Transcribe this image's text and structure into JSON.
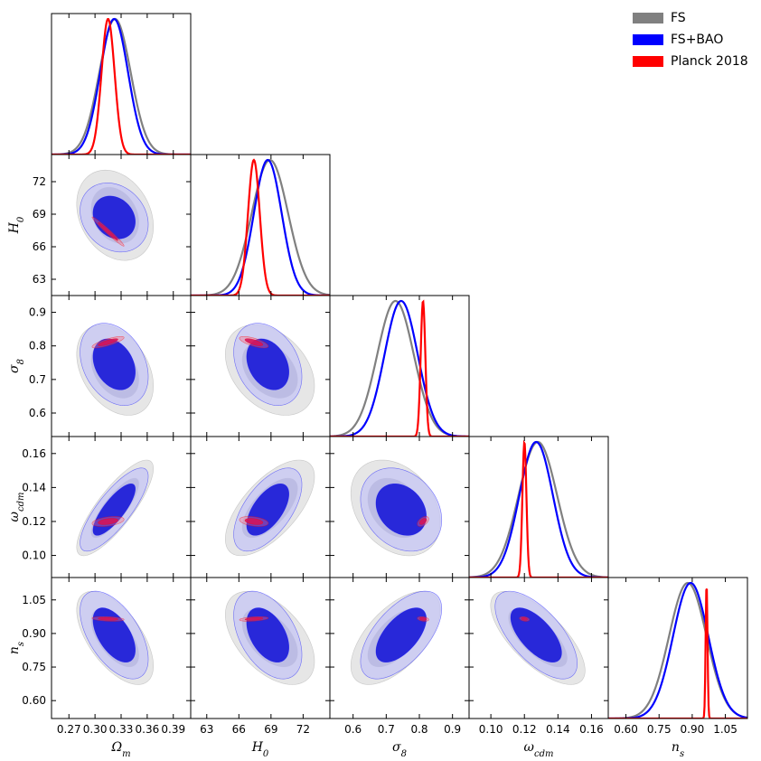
{
  "chart_data": {
    "type": "corner",
    "parameters": [
      {
        "label": "Ω_m",
        "sub": "m",
        "base": "Ω",
        "range": [
          0.25,
          0.41
        ],
        "ticks": [
          "0.27",
          "0.30",
          "0.33",
          "0.36",
          "0.39"
        ],
        "tickValues": [
          0.27,
          0.3,
          0.33,
          0.36,
          0.39
        ]
      },
      {
        "label": "H_0",
        "sub": "0",
        "base": "H",
        "range": [
          61.5,
          74.5
        ],
        "ticks": [
          "63",
          "66",
          "69",
          "72"
        ],
        "tickValues": [
          63,
          66,
          69,
          72
        ]
      },
      {
        "label": "σ_8",
        "sub": "8",
        "base": "σ",
        "range": [
          0.53,
          0.95
        ],
        "ticks": [
          "0.6",
          "0.7",
          "0.8",
          "0.9"
        ],
        "tickValues": [
          0.6,
          0.7,
          0.8,
          0.9
        ]
      },
      {
        "label": "ω_cdm",
        "sub": "cdm",
        "base": "ω",
        "range": [
          0.087,
          0.17
        ],
        "ticks": [
          "0.10",
          "0.12",
          "0.14",
          "0.16"
        ],
        "tickValues": [
          0.1,
          0.12,
          0.14,
          0.16
        ]
      },
      {
        "label": "n_s",
        "sub": "s",
        "base": "n",
        "range": [
          0.52,
          1.15
        ],
        "ticks": [
          "0.60",
          "0.75",
          "0.90",
          "1.05"
        ],
        "tickValues": [
          0.6,
          0.75,
          0.9,
          1.05
        ]
      }
    ],
    "series": [
      {
        "name": "FS",
        "color": "#808080",
        "mean": [
          0.323,
          68.9,
          0.728,
          0.128,
          0.88
        ],
        "sigma": [
          0.018,
          1.7,
          0.055,
          0.0115,
          0.085
        ],
        "corr": [
          [
            1,
            -0.25,
            -0.35,
            0.82,
            -0.6
          ],
          [
            -0.25,
            1,
            -0.35,
            0.65,
            -0.5
          ],
          [
            -0.35,
            -0.35,
            1,
            -0.3,
            0.6
          ],
          [
            0.82,
            0.65,
            -0.3,
            1,
            -0.7
          ],
          [
            -0.6,
            -0.5,
            0.6,
            -0.7,
            1
          ]
        ]
      },
      {
        "name": "FS+BAO",
        "color": "#0000ff",
        "mean": [
          0.322,
          68.7,
          0.745,
          0.127,
          0.893
        ],
        "sigma": [
          0.016,
          1.3,
          0.05,
          0.01,
          0.08
        ],
        "corr": [
          [
            1,
            -0.2,
            -0.3,
            0.8,
            -0.55
          ],
          [
            -0.2,
            1,
            -0.3,
            0.6,
            -0.45
          ],
          [
            -0.3,
            -0.3,
            1,
            -0.25,
            0.6
          ],
          [
            0.8,
            0.6,
            -0.25,
            1,
            -0.65
          ],
          [
            -0.55,
            -0.45,
            0.6,
            -0.65,
            1
          ]
        ]
      },
      {
        "name": "Planck 2018",
        "color": "#ff0000",
        "mean": [
          0.315,
          67.4,
          0.811,
          0.12,
          0.965
        ],
        "sigma": [
          0.0075,
          0.55,
          0.007,
          0.0012,
          0.0042
        ],
        "corr": [
          [
            1,
            -0.98,
            0.8,
            0.4,
            -0.3
          ],
          [
            -0.98,
            1,
            -0.7,
            -0.35,
            0.4
          ],
          [
            0.8,
            -0.7,
            1,
            0.5,
            -0.3
          ],
          [
            0.4,
            -0.35,
            0.5,
            1,
            -0.3
          ],
          [
            -0.3,
            0.4,
            -0.3,
            -0.3,
            1
          ]
        ]
      }
    ],
    "legend": {
      "position": "top-right"
    }
  },
  "legend": {
    "items": [
      {
        "label": "FS",
        "color": "#808080"
      },
      {
        "label": "FS+BAO",
        "color": "#0000ff"
      },
      {
        "label": "Planck 2018",
        "color": "#ff0000"
      }
    ]
  }
}
